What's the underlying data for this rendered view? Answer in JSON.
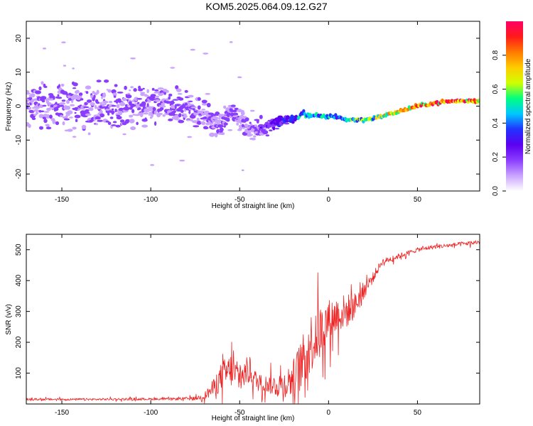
{
  "title": "KOM5.2025.064.09.12.G27",
  "colors": {
    "spectrum_scale": [
      "#ffffff",
      "#c9a3ff",
      "#8a3cff",
      "#5b00f0",
      "#2233ff",
      "#00c8ff",
      "#00ff7f",
      "#cfff00",
      "#ffcc00",
      "#ff7a00",
      "#ff1a1a",
      "#ff0066"
    ],
    "snr_line": "#ee2222"
  },
  "chart_data": [
    {
      "type": "heatmap",
      "xlabel": "Height of straight line (km)",
      "ylabel": "Frequency (Hz)",
      "xlim": [
        -170,
        85
      ],
      "ylim": [
        -25,
        25
      ],
      "x_ticks": [
        -150,
        -100,
        -50,
        0,
        50
      ],
      "y_ticks": [
        -20,
        -10,
        0,
        10,
        20
      ],
      "colorbar": {
        "label": "Normalized spectral amplitude",
        "range": [
          0,
          1
        ],
        "ticks": [
          0.0,
          0.2,
          0.4,
          0.6,
          0.8
        ]
      },
      "ridge": {
        "heights_km": [
          -170,
          -150,
          -130,
          -110,
          -90,
          -75,
          -65,
          -60,
          -55,
          -50,
          -45,
          -40,
          -35,
          -30,
          -25,
          -20,
          -15,
          -10,
          -5,
          0,
          5,
          10,
          15,
          20,
          30,
          40,
          50,
          60,
          70,
          85
        ],
        "frequency_hz": [
          0,
          0,
          0,
          0,
          0,
          -1,
          -4,
          -6,
          -1,
          -4,
          -7,
          -7,
          -6,
          -5,
          -4,
          -4,
          -2,
          -3,
          -3,
          -3,
          -3,
          -4,
          -4,
          -4,
          -3,
          -1.5,
          0,
          1,
          1.5,
          1.5
        ],
        "spread_hz": [
          7,
          7,
          7,
          6,
          6,
          5,
          4,
          4,
          3,
          3,
          3,
          3,
          2.5,
          2,
          1.5,
          1.2,
          1,
          0.8,
          0.7,
          0.7,
          0.6,
          0.6,
          0.6,
          0.5,
          0.5,
          0.5,
          0.5,
          0.5,
          0.5,
          0.5
        ],
        "amplitude": [
          0.15,
          0.15,
          0.15,
          0.15,
          0.15,
          0.15,
          0.15,
          0.15,
          0.2,
          0.15,
          0.15,
          0.18,
          0.2,
          0.25,
          0.3,
          0.35,
          0.45,
          0.45,
          0.5,
          0.45,
          0.4,
          0.45,
          0.6,
          0.55,
          0.7,
          0.8,
          0.85,
          0.9,
          0.95,
          0.95
        ]
      }
    },
    {
      "type": "line",
      "xlabel": "Height of straight line (km)",
      "ylabel": "SNR (v/v)",
      "xlim": [
        -170,
        85
      ],
      "ylim": [
        0,
        550
      ],
      "x_ticks": [
        -150,
        -100,
        -50,
        0,
        50
      ],
      "y_ticks": [
        100,
        200,
        300,
        400,
        500
      ],
      "series": [
        {
          "x": [
            -170,
            -150,
            -130,
            -110,
            -90,
            -75,
            -70,
            -65,
            -60,
            -55,
            -50,
            -45,
            -40,
            -35,
            -30,
            -25,
            -20,
            -15,
            -10,
            -5,
            0,
            5,
            10,
            15,
            20,
            25,
            30,
            40,
            50,
            60,
            70,
            85
          ],
          "y": [
            15,
            15,
            15,
            16,
            16,
            18,
            25,
            50,
            90,
            110,
            80,
            110,
            70,
            65,
            60,
            65,
            80,
            130,
            200,
            230,
            270,
            290,
            300,
            320,
            370,
            410,
            460,
            480,
            500,
            510,
            515,
            525
          ],
          "noise": [
            5,
            5,
            5,
            5,
            5,
            8,
            15,
            40,
            70,
            80,
            60,
            70,
            40,
            40,
            50,
            60,
            90,
            120,
            140,
            130,
            100,
            90,
            80,
            60,
            40,
            25,
            15,
            12,
            10,
            10,
            10,
            10
          ]
        }
      ]
    }
  ]
}
